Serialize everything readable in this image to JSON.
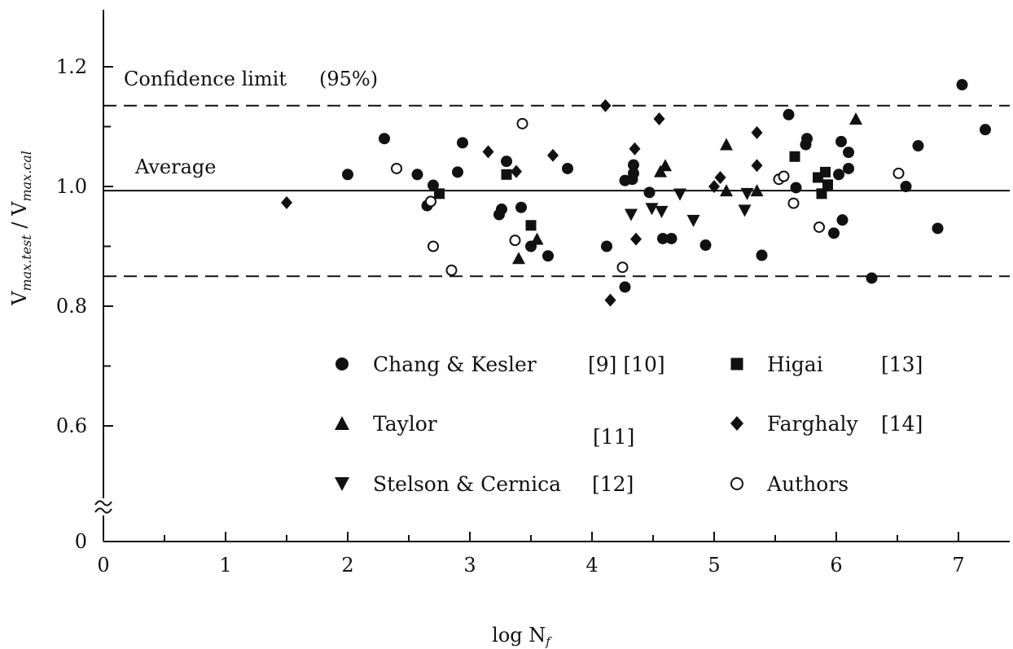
{
  "chart_data": {
    "type": "scatter",
    "xlabel": "log N",
    "xlabel_sub": "f",
    "ylabel": {
      "v1": "V",
      "sub1": "max.test",
      "sep": "/",
      "v2": "V",
      "sub2": "max.cal"
    },
    "xlim": [
      0,
      7.5
    ],
    "ylim": [
      0.62,
      1.28
    ],
    "axis_break": true,
    "x_ticks": [
      0,
      1,
      2,
      3,
      4,
      5,
      6,
      7
    ],
    "y_ticks": [
      {
        "value": 1.2,
        "label": "1.2"
      },
      {
        "value": 1.0,
        "label": "1.0"
      },
      {
        "value": 0.8,
        "label": "0.8"
      },
      {
        "value": 0.6,
        "label": "0.6"
      },
      {
        "value": 0.0,
        "label": "0"
      }
    ],
    "grid": false,
    "reference_lines": [
      {
        "y": 0.993,
        "style": "solid",
        "label": "Average"
      },
      {
        "y": 1.135,
        "style": "dashed",
        "label": "Confidence limit (95%)"
      },
      {
        "y": 0.85,
        "style": "dashed",
        "label": ""
      }
    ],
    "legend_position": "lower-center",
    "series": [
      {
        "name": "Chang & Kesler",
        "ref": "[9] [10]",
        "marker": "filled-circle",
        "points": [
          [
            2.0,
            1.02
          ],
          [
            2.3,
            1.08
          ],
          [
            2.57,
            1.02
          ],
          [
            2.7,
            1.002
          ],
          [
            2.65,
            0.968
          ],
          [
            2.9,
            1.024
          ],
          [
            2.94,
            1.073
          ],
          [
            3.24,
            0.953
          ],
          [
            3.26,
            0.962
          ],
          [
            3.3,
            1.042
          ],
          [
            3.42,
            0.965
          ],
          [
            3.5,
            0.9
          ],
          [
            3.64,
            0.884
          ],
          [
            3.8,
            1.03
          ],
          [
            4.12,
            0.9
          ],
          [
            4.27,
            0.832
          ],
          [
            4.27,
            1.01
          ],
          [
            4.33,
            1.012
          ],
          [
            4.34,
            1.022
          ],
          [
            4.34,
            1.036
          ],
          [
            4.47,
            0.99
          ],
          [
            4.58,
            0.913
          ],
          [
            4.65,
            0.913
          ],
          [
            4.93,
            0.902
          ],
          [
            5.39,
            0.885
          ],
          [
            5.61,
            1.12
          ],
          [
            5.67,
            0.998
          ],
          [
            5.75,
            1.07
          ],
          [
            5.76,
            1.08
          ],
          [
            5.98,
            0.922
          ],
          [
            6.02,
            1.02
          ],
          [
            6.04,
            1.075
          ],
          [
            6.05,
            0.944
          ],
          [
            6.1,
            1.03
          ],
          [
            6.1,
            1.057
          ],
          [
            6.29,
            0.847
          ],
          [
            6.57,
            1.0
          ],
          [
            6.67,
            1.068
          ],
          [
            6.83,
            0.93
          ],
          [
            7.03,
            1.17
          ],
          [
            7.22,
            1.095
          ]
        ]
      },
      {
        "name": "Higai",
        "ref": "[13]",
        "marker": "filled-square",
        "points": [
          [
            2.75,
            0.988
          ],
          [
            3.3,
            1.02
          ],
          [
            3.5,
            0.935
          ],
          [
            5.66,
            1.05
          ],
          [
            5.85,
            1.015
          ],
          [
            5.88,
            0.988
          ],
          [
            5.91,
            1.024
          ],
          [
            5.93,
            1.003
          ]
        ]
      },
      {
        "name": "Taylor",
        "ref": "[11]",
        "marker": "filled-triangle-up",
        "points": [
          [
            3.4,
            0.88
          ],
          [
            3.55,
            0.912
          ],
          [
            4.56,
            1.025
          ],
          [
            4.6,
            1.035
          ],
          [
            5.1,
            1.07
          ],
          [
            5.1,
            0.993
          ],
          [
            5.35,
            0.993
          ],
          [
            6.16,
            1.113
          ]
        ]
      },
      {
        "name": "Farghaly",
        "ref": "[14]",
        "marker": "filled-diamond",
        "points": [
          [
            1.5,
            0.973
          ],
          [
            3.15,
            1.058
          ],
          [
            3.38,
            1.025
          ],
          [
            3.68,
            1.052
          ],
          [
            4.11,
            1.135
          ],
          [
            4.15,
            0.81
          ],
          [
            4.35,
            1.063
          ],
          [
            4.36,
            0.912
          ],
          [
            4.55,
            1.113
          ],
          [
            5.05,
            1.015
          ],
          [
            5.0,
            1.0
          ],
          [
            5.35,
            1.035
          ],
          [
            5.35,
            1.09
          ]
        ]
      },
      {
        "name": "Stelson & Cernica",
        "ref": "[12]",
        "marker": "filled-triangle-down",
        "points": [
          [
            4.32,
            0.953
          ],
          [
            4.49,
            0.963
          ],
          [
            4.57,
            0.958
          ],
          [
            4.72,
            0.987
          ],
          [
            4.83,
            0.943
          ],
          [
            5.25,
            0.96
          ],
          [
            5.27,
            0.988
          ]
        ]
      },
      {
        "name": "Authors",
        "ref": "",
        "marker": "open-circle",
        "points": [
          [
            2.4,
            1.03
          ],
          [
            2.68,
            0.975
          ],
          [
            2.7,
            0.9
          ],
          [
            2.85,
            0.86
          ],
          [
            3.37,
            0.91
          ],
          [
            3.43,
            1.105
          ],
          [
            4.25,
            0.865
          ],
          [
            5.53,
            1.012
          ],
          [
            5.57,
            1.017
          ],
          [
            5.65,
            0.972
          ],
          [
            5.86,
            0.932
          ],
          [
            6.51,
            1.022
          ]
        ]
      }
    ]
  },
  "annotations": {
    "confidence": "Confidence limit",
    "confidence_pct": "(95%)",
    "average": "Average"
  }
}
